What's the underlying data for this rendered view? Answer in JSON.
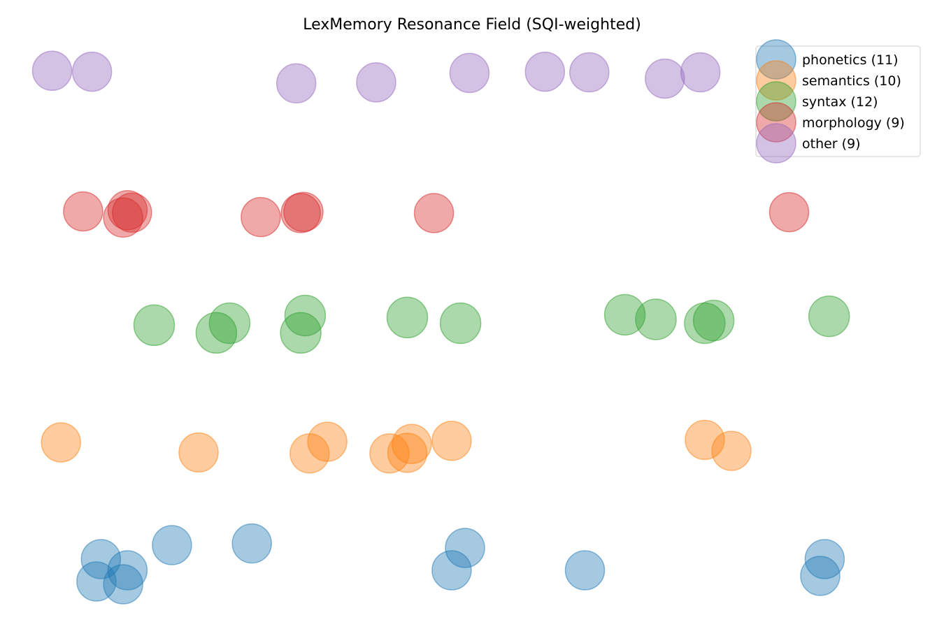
{
  "chart_data": {
    "type": "scatter",
    "title": "LexMemory Resonance Field (SQI-weighted)",
    "axes_visible": false,
    "legend_placement": "top-right",
    "series": [
      {
        "name": "phonetics (11)",
        "color": "#1f77b4",
        "points": [
          {
            "x": 0.09,
            "y": 0.5
          },
          {
            "x": 0.085,
            "y": 0.1
          },
          {
            "x": 0.12,
            "y": 0.3
          },
          {
            "x": 0.115,
            "y": 0.05
          },
          {
            "x": 0.17,
            "y": 0.75
          },
          {
            "x": 0.26,
            "y": 0.78
          },
          {
            "x": 0.5,
            "y": 0.7
          },
          {
            "x": 0.485,
            "y": 0.3
          },
          {
            "x": 0.635,
            "y": 0.3
          },
          {
            "x": 0.905,
            "y": 0.5
          },
          {
            "x": 0.9,
            "y": 0.2
          }
        ]
      },
      {
        "name": "semantics (10)",
        "color": "#ff7f0e",
        "points": [
          {
            "x": 0.045,
            "y": 0.6
          },
          {
            "x": 0.2,
            "y": 0.28
          },
          {
            "x": 0.325,
            "y": 0.25
          },
          {
            "x": 0.345,
            "y": 0.62
          },
          {
            "x": 0.415,
            "y": 0.25
          },
          {
            "x": 0.44,
            "y": 0.55
          },
          {
            "x": 0.435,
            "y": 0.27
          },
          {
            "x": 0.485,
            "y": 0.65
          },
          {
            "x": 0.77,
            "y": 0.68
          },
          {
            "x": 0.8,
            "y": 0.33
          }
        ]
      },
      {
        "name": "syntax (12)",
        "color": "#2ca02c",
        "points": [
          {
            "x": 0.15,
            "y": 0.45
          },
          {
            "x": 0.235,
            "y": 0.5
          },
          {
            "x": 0.22,
            "y": 0.25
          },
          {
            "x": 0.32,
            "y": 0.7
          },
          {
            "x": 0.315,
            "y": 0.25
          },
          {
            "x": 0.435,
            "y": 0.65
          },
          {
            "x": 0.495,
            "y": 0.5
          },
          {
            "x": 0.68,
            "y": 0.72
          },
          {
            "x": 0.715,
            "y": 0.6
          },
          {
            "x": 0.77,
            "y": 0.5
          },
          {
            "x": 0.78,
            "y": 0.57
          },
          {
            "x": 0.91,
            "y": 0.68
          }
        ]
      },
      {
        "name": "morphology (9)",
        "color": "#d62728",
        "points": [
          {
            "x": 0.07,
            "y": 0.5
          },
          {
            "x": 0.12,
            "y": 0.55
          },
          {
            "x": 0.125,
            "y": 0.45
          },
          {
            "x": 0.115,
            "y": 0.25
          },
          {
            "x": 0.27,
            "y": 0.27
          },
          {
            "x": 0.315,
            "y": 0.43
          },
          {
            "x": 0.318,
            "y": 0.48
          },
          {
            "x": 0.465,
            "y": 0.43
          },
          {
            "x": 0.865,
            "y": 0.47
          }
        ]
      },
      {
        "name": "other (9)",
        "color": "#9467bd",
        "points": [
          {
            "x": 0.035,
            "y": 0.75
          },
          {
            "x": 0.08,
            "y": 0.72
          },
          {
            "x": 0.31,
            "y": 0.35
          },
          {
            "x": 0.4,
            "y": 0.38
          },
          {
            "x": 0.505,
            "y": 0.68
          },
          {
            "x": 0.59,
            "y": 0.72
          },
          {
            "x": 0.64,
            "y": 0.7
          },
          {
            "x": 0.725,
            "y": 0.5
          },
          {
            "x": 0.765,
            "y": 0.7
          }
        ]
      }
    ]
  }
}
